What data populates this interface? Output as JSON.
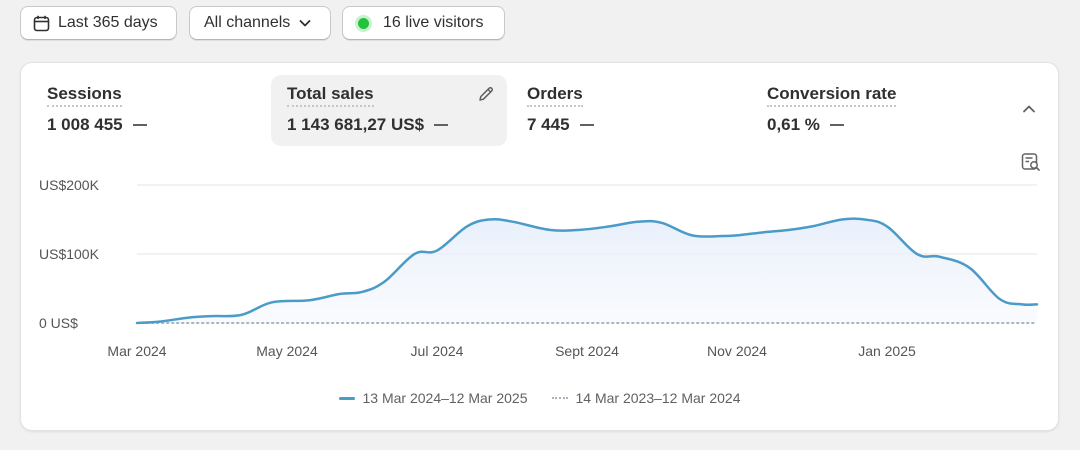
{
  "toolbar": {
    "date_range": "Last 365 days",
    "channels": "All channels",
    "live_visitors": "16 live visitors"
  },
  "metrics": [
    {
      "label": "Sessions",
      "value": "1 008 455"
    },
    {
      "label": "Total sales",
      "value": "1 143 681,27 US$"
    },
    {
      "label": "Orders",
      "value": "7 445"
    },
    {
      "label": "Conversion rate",
      "value": "0,61 %"
    }
  ],
  "colors": {
    "current_series": "#4a9bc7",
    "previous_series": "#a9b6c2",
    "live_dot": "#22c33a"
  },
  "icons": [
    "calendar-icon",
    "chevron-down-icon",
    "pencil-icon",
    "chevron-up-icon",
    "explore-report-icon"
  ],
  "chart_data": {
    "type": "area",
    "ylim": [
      0,
      200000
    ],
    "y_ticks": [
      {
        "value": 0,
        "label": "0 US$"
      },
      {
        "value": 100000,
        "label": "US$100K"
      },
      {
        "value": 200000,
        "label": "US$200K"
      }
    ],
    "x_ticks": [
      "Mar 2024",
      "May 2024",
      "Jul 2024",
      "Sept 2024",
      "Nov 2024",
      "Jan 2025"
    ],
    "x_tick_positions": [
      0,
      2,
      4,
      6,
      8,
      10
    ],
    "x_range": [
      0,
      12
    ],
    "grid": true,
    "legend_position": "bottom-center",
    "series": [
      {
        "name": "13 Mar 2024–12 Mar 2025",
        "style": "solid",
        "x": [
          0,
          0.3,
          0.7,
          1.0,
          1.4,
          1.8,
          2.3,
          2.7,
          3.0,
          3.3,
          3.7,
          4.0,
          4.4,
          4.7,
          5.0,
          5.5,
          5.9,
          6.3,
          6.7,
          7.0,
          7.4,
          7.8,
          8.0,
          8.4,
          8.7,
          9.0,
          9.4,
          9.7,
          10.0,
          10.4,
          10.7,
          11.1,
          11.5,
          11.8,
          12.0
        ],
        "values": [
          0,
          2000,
          8000,
          10000,
          12000,
          30000,
          33000,
          42000,
          45000,
          60000,
          100000,
          105000,
          140000,
          150000,
          147000,
          135000,
          135000,
          140000,
          147000,
          145000,
          127000,
          126000,
          127000,
          132000,
          135000,
          140000,
          150000,
          150000,
          140000,
          100000,
          96000,
          80000,
          35000,
          27000,
          27000
        ]
      },
      {
        "name": "14 Mar 2023–12 Mar 2024",
        "style": "dotted",
        "x": [
          0,
          12
        ],
        "values": [
          0,
          0
        ]
      }
    ]
  }
}
